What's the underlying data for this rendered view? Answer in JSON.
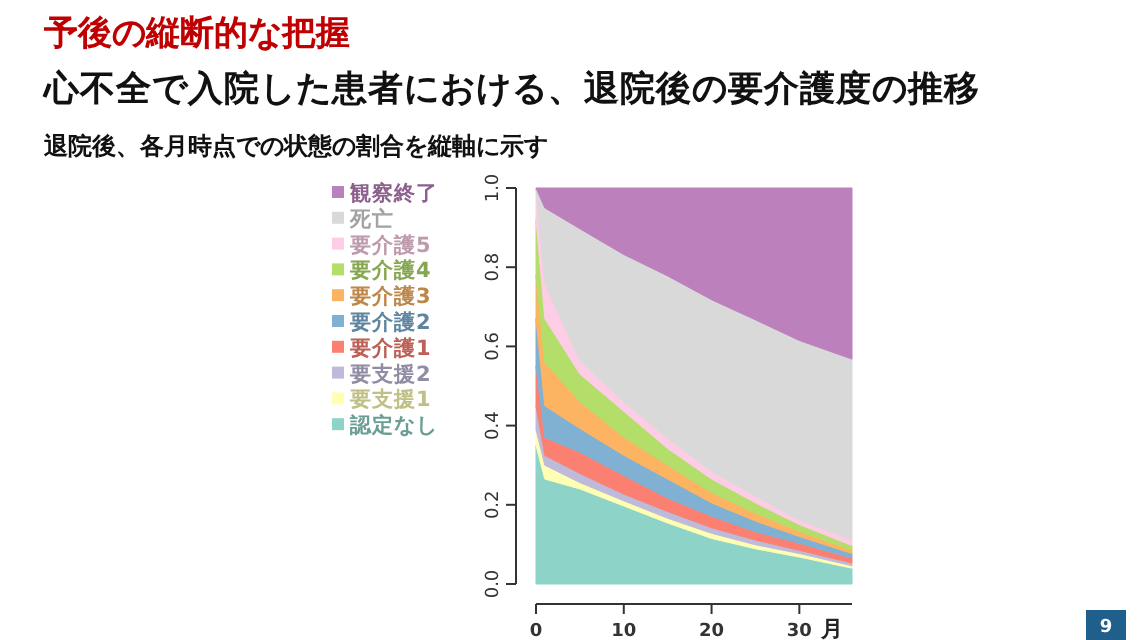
{
  "chart_data": {
    "type": "area",
    "stacked": true,
    "title": "予後の縦断的な把握",
    "subtitle": "心不全で入院した患者における、退院後の要介護度の推移",
    "annotations": [
      "退院後、各月時点での状態の割合を縦軸に示す",
      "9"
    ],
    "xlabel": "月",
    "legend": "left",
    "x": [
      0,
      1,
      5,
      10,
      15,
      20,
      25,
      30,
      36
    ],
    "xlim": [
      0,
      36
    ],
    "xticks": [
      0,
      10,
      20,
      30
    ],
    "ylim": [
      0,
      1
    ],
    "yticks": [
      {
        "value": 0,
        "label": "0.0"
      },
      0.2,
      0.4,
      0.6,
      0.8,
      {
        "value": 1,
        "label": "1.0"
      }
    ],
    "series": [
      {
        "name": "認定なし",
        "color": "#8dd3c7",
        "values": [
          0.35,
          0.265,
          0.24,
          0.197,
          0.154,
          0.115,
          0.089,
          0.068,
          0.04
        ]
      },
      {
        "name": "要支援1",
        "color": "#ffffb3",
        "values": [
          0.04,
          0.035,
          0.016,
          0.013,
          0.012,
          0.013,
          0.01,
          0.009,
          0.006
        ]
      },
      {
        "name": "要支援2",
        "color": "#bebada",
        "values": [
          0.06,
          0.025,
          0.023,
          0.017,
          0.017,
          0.014,
          0.012,
          0.008,
          0.007
        ]
      },
      {
        "name": "要介護1",
        "color": "#fb8072",
        "values": [
          0.1,
          0.045,
          0.054,
          0.047,
          0.034,
          0.029,
          0.021,
          0.018,
          0.012
        ]
      },
      {
        "name": "要介護2",
        "color": "#80b1d3",
        "values": [
          0.12,
          0.08,
          0.06,
          0.051,
          0.048,
          0.034,
          0.027,
          0.017,
          0.012
        ]
      },
      {
        "name": "要介護3",
        "color": "#fdb462",
        "values": [
          0.11,
          0.11,
          0.067,
          0.046,
          0.035,
          0.026,
          0.02,
          0.013,
          0.008
        ]
      },
      {
        "name": "要介護4",
        "color": "#b3de69",
        "values": [
          0.14,
          0.11,
          0.07,
          0.065,
          0.042,
          0.034,
          0.026,
          0.017,
          0.012
        ]
      },
      {
        "name": "要介護5",
        "color": "#fccde5",
        "values": [
          0.08,
          0.09,
          0.034,
          0.024,
          0.026,
          0.02,
          0.017,
          0.012,
          0.014
        ]
      },
      {
        "name": "死亡",
        "color": "#d9d9d9",
        "values": [
          0,
          0.19,
          0.333,
          0.372,
          0.41,
          0.433,
          0.445,
          0.453,
          0.457
        ]
      },
      {
        "name": "観察終了",
        "color": "#bc80bd",
        "values": [
          0,
          0.05,
          0.103,
          0.168,
          0.222,
          0.282,
          0.333,
          0.385,
          0.432
        ]
      }
    ]
  }
}
